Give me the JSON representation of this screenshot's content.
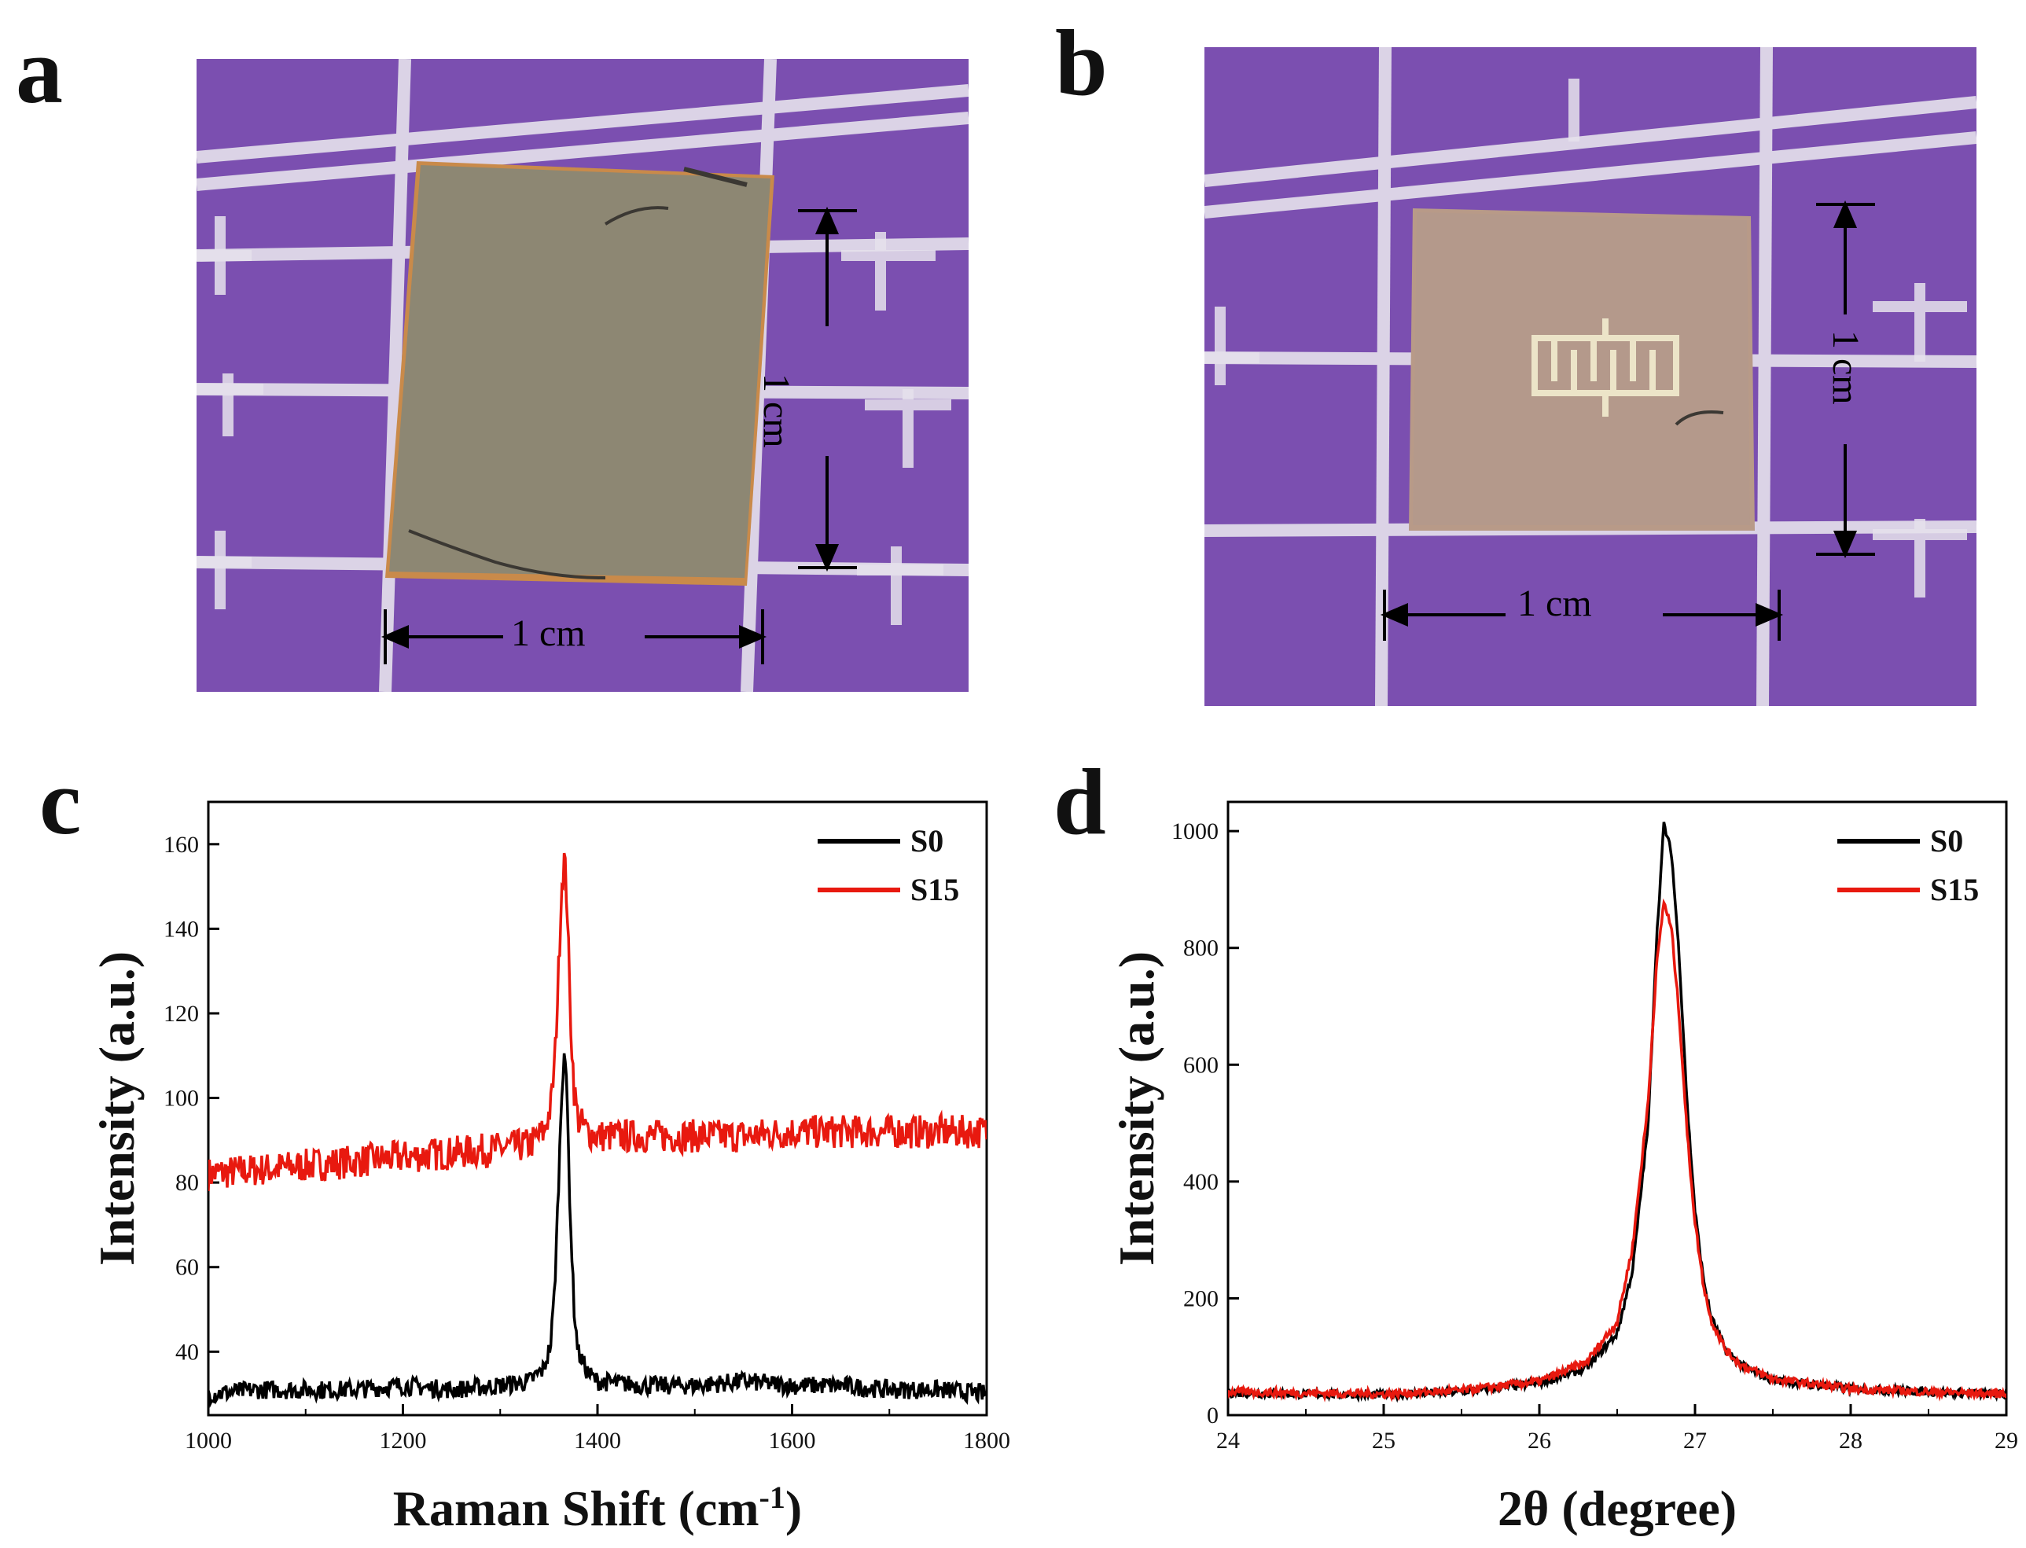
{
  "panels": {
    "a": {
      "letter": "a",
      "scale_h": "1 cm",
      "scale_v": "1 cm"
    },
    "b": {
      "letter": "b",
      "scale_h": "1 cm",
      "scale_v": "1 cm"
    },
    "c": {
      "letter": "c"
    },
    "d": {
      "letter": "d"
    }
  },
  "colors": {
    "mat": "#7b4fb0",
    "grid": "#e6e2ec",
    "s0": "#000000",
    "s15": "#e8190f"
  },
  "chart_data": [
    {
      "id": "c",
      "type": "line",
      "xlabel": "Raman Shift (cm",
      "xlabel_sup": "-1",
      "xlabel_close": ")",
      "ylabel": "Intensity (a.u.)",
      "xlim": [
        1000,
        1800
      ],
      "ylim": [
        25,
        170
      ],
      "xticks": [
        "1000",
        "1200",
        "1400",
        "1600",
        "1800"
      ],
      "yticks": [
        "40",
        "60",
        "80",
        "100",
        "120",
        "140",
        "160"
      ],
      "legend": [
        "S0",
        "S15"
      ],
      "legend_position": "top-right",
      "series": [
        {
          "name": "S0",
          "color": "#000000",
          "x": [
            1000,
            1050,
            1100,
            1150,
            1200,
            1250,
            1300,
            1330,
            1345,
            1352,
            1356,
            1360,
            1363,
            1366,
            1369,
            1372,
            1376,
            1380,
            1390,
            1400,
            1450,
            1500,
            1550,
            1600,
            1650,
            1700,
            1750,
            1800
          ],
          "y": [
            30,
            31,
            31,
            31,
            32,
            31,
            32,
            33,
            36,
            42,
            55,
            80,
            100,
            113,
            98,
            72,
            50,
            40,
            35,
            33,
            32,
            32,
            33,
            32,
            32,
            31,
            31,
            30
          ]
        },
        {
          "name": "S15",
          "color": "#e8190f",
          "x": [
            1000,
            1050,
            1100,
            1150,
            1200,
            1250,
            1300,
            1330,
            1345,
            1352,
            1356,
            1360,
            1363,
            1366,
            1369,
            1372,
            1376,
            1380,
            1390,
            1400,
            1450,
            1500,
            1550,
            1600,
            1650,
            1700,
            1750,
            1800
          ],
          "y": [
            82,
            83,
            84,
            85,
            86,
            87,
            88,
            89,
            92,
            98,
            108,
            130,
            150,
            157,
            145,
            120,
            102,
            95,
            92,
            91,
            91,
            91,
            91,
            92,
            92,
            92,
            92,
            92
          ]
        }
      ]
    },
    {
      "id": "d",
      "type": "line",
      "xlabel": "2θ (degree)",
      "ylabel": "Intensity (a.u.)",
      "xlim": [
        24,
        29
      ],
      "ylim": [
        0,
        1050
      ],
      "xticks": [
        "24",
        "25",
        "26",
        "27",
        "28",
        "29"
      ],
      "yticks": [
        "0",
        "200",
        "400",
        "600",
        "800",
        "1000"
      ],
      "legend": [
        "S0",
        "S15"
      ],
      "legend_position": "top-right",
      "series": [
        {
          "name": "S0",
          "color": "#000000",
          "x": [
            24,
            24.5,
            25,
            25.5,
            26,
            26.3,
            26.5,
            26.6,
            26.7,
            26.75,
            26.8,
            26.85,
            26.9,
            26.95,
            27.0,
            27.05,
            27.1,
            27.2,
            27.3,
            27.5,
            28,
            28.5,
            29
          ],
          "y": [
            38,
            36,
            35,
            40,
            55,
            80,
            140,
            250,
            500,
            800,
            1012,
            960,
            780,
            530,
            350,
            240,
            170,
            110,
            85,
            60,
            45,
            40,
            35
          ]
        },
        {
          "name": "S15",
          "color": "#e8190f",
          "x": [
            24,
            24.5,
            25,
            25.5,
            26,
            26.3,
            26.5,
            26.6,
            26.7,
            26.75,
            26.8,
            26.85,
            26.9,
            26.95,
            27.0,
            27.05,
            27.1,
            27.2,
            27.3,
            27.5,
            28,
            28.5,
            29
          ],
          "y": [
            40,
            38,
            36,
            42,
            58,
            90,
            160,
            290,
            540,
            760,
            880,
            830,
            680,
            480,
            330,
            230,
            165,
            110,
            85,
            62,
            45,
            40,
            36
          ]
        }
      ]
    }
  ]
}
